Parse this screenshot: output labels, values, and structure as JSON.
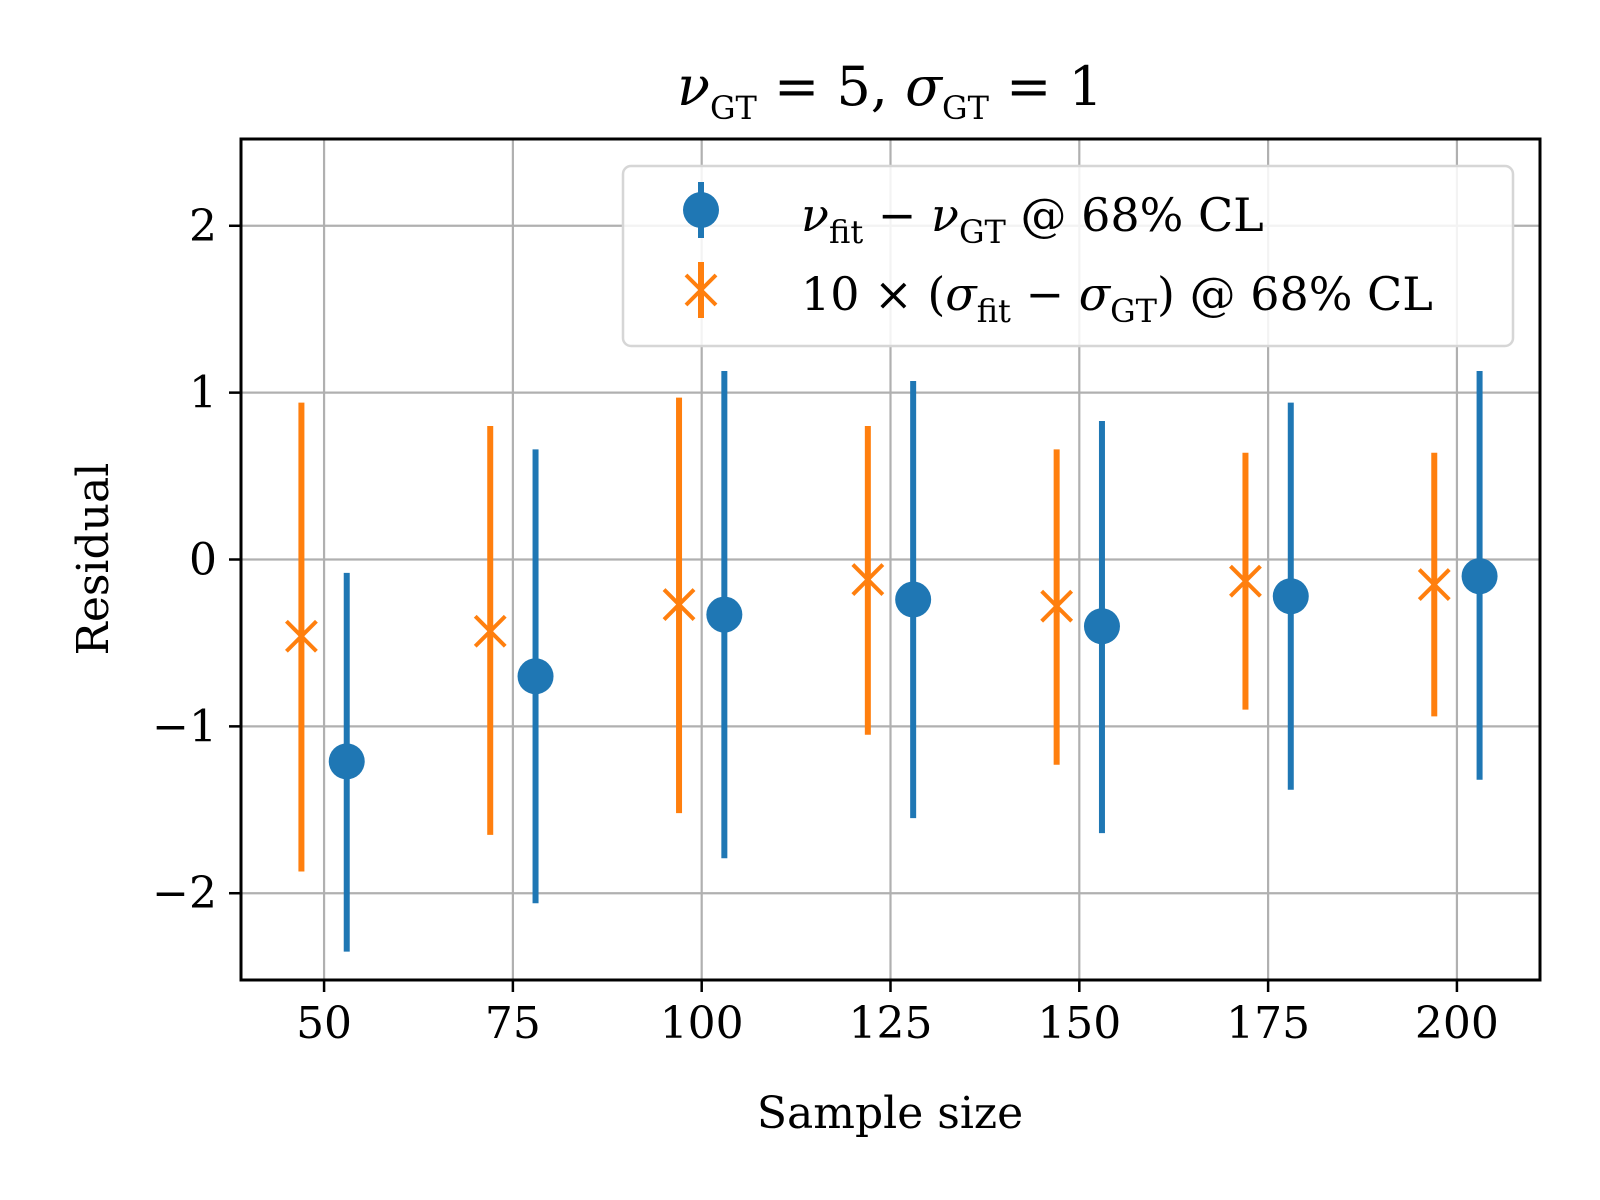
{
  "chart_data": {
    "type": "errorbar",
    "title_parts": {
      "nu": "ν",
      "sigma": "σ",
      "gt_sub": "GT",
      "eq_nu": " = 5, ",
      "eq_sigma": " = 1"
    },
    "xlabel": "Sample size",
    "ylabel": "Residual",
    "xlim": [
      39,
      211
    ],
    "ylim": [
      -2.52,
      2.52
    ],
    "xticks": [
      50,
      75,
      100,
      125,
      150,
      175,
      200
    ],
    "xtick_labels": [
      "50",
      "75",
      "100",
      "125",
      "150",
      "175",
      "200"
    ],
    "yticks": [
      -2,
      -1,
      0,
      1,
      2
    ],
    "ytick_labels": [
      "−2",
      "−1",
      "0",
      "1",
      "2"
    ],
    "grid": true,
    "legend_position": "top-right",
    "colors": {
      "blue": "#1f77b4",
      "orange": "#ff7f0e"
    },
    "series": [
      {
        "name": "nu_fit - nu_GT @ 68% CL",
        "legend_parts": {
          "nu": "ν",
          "fit_sub": "fit",
          "minus": " − ",
          "nu2": "ν",
          "gt_sub": "GT",
          "suffix": "  @ 68% CL"
        },
        "marker": "circle",
        "color": "#1f77b4",
        "x": [
          53,
          78,
          103,
          128,
          153,
          178,
          203
        ],
        "y": [
          -1.21,
          -0.7,
          -0.33,
          -0.24,
          -0.4,
          -0.22,
          -0.1
        ],
        "lower": [
          -2.35,
          -2.06,
          -1.79,
          -1.55,
          -1.64,
          -1.38,
          -1.32
        ],
        "upper": [
          -0.08,
          0.66,
          1.13,
          1.07,
          0.83,
          0.94,
          1.13
        ]
      },
      {
        "name": "10 × (sigma_fit - sigma_GT) @ 68% CL",
        "legend_parts": {
          "prefix": "10 × (",
          "sigma": "σ",
          "fit_sub": "fit",
          "minus": " − ",
          "sigma2": "σ",
          "gt_sub": "GT",
          "suffix": ")  @ 68% CL"
        },
        "marker": "x",
        "color": "#ff7f0e",
        "x": [
          47,
          72,
          97,
          122,
          147,
          172,
          197
        ],
        "y": [
          -0.46,
          -0.43,
          -0.27,
          -0.12,
          -0.28,
          -0.13,
          -0.15
        ],
        "lower": [
          -1.87,
          -1.65,
          -1.52,
          -1.05,
          -1.23,
          -0.9,
          -0.94
        ],
        "upper": [
          0.94,
          0.8,
          0.97,
          0.8,
          0.66,
          0.64,
          0.64
        ]
      }
    ]
  }
}
